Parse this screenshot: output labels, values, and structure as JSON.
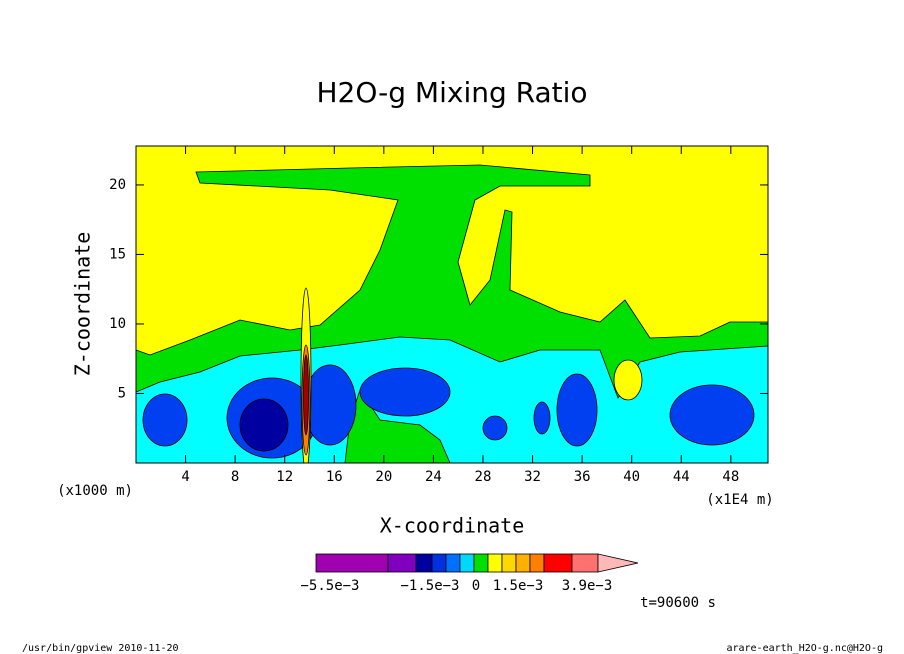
{
  "chart_data": {
    "type": "contour",
    "title": "H2O-g Mixing Ratio",
    "xlabel": "X-coordinate",
    "ylabel": "Z-coordinate",
    "xunit": "(x1000 m)",
    "xunit2": "(x1E4 m)",
    "xlim": [
      0,
      51
    ],
    "xticks": [
      4,
      8,
      12,
      16,
      20,
      24,
      28,
      32,
      36,
      40,
      44,
      48
    ],
    "ylim": [
      0,
      22.8
    ],
    "yticks": [
      5,
      10,
      15,
      20
    ],
    "colorbar": {
      "colors": [
        "#a000b0",
        "#8000c0",
        "#0000a0",
        "#0030e0",
        "#0070ff",
        "#00d8ff",
        "#00e000",
        "#ffff00",
        "#ffd800",
        "#ffb000",
        "#ff8000",
        "#ff0000",
        "#ff7070",
        "#ffb8b8"
      ],
      "labels": [
        {
          "value": -0.0055,
          "label": "−5.5e−3"
        },
        {
          "value": -0.0015,
          "label": "−1.5e−3"
        },
        0,
        {
          "value": 0.0015,
          "label": "1.5e−3"
        },
        {
          "value": 0.0039,
          "label": "3.9e−3"
        }
      ]
    },
    "time_label": "t=90600 s",
    "footer_left": "/usr/bin/gpview  2010-11-20",
    "footer_right": "arare-earth_H2O-g.nc@H2O-g"
  }
}
